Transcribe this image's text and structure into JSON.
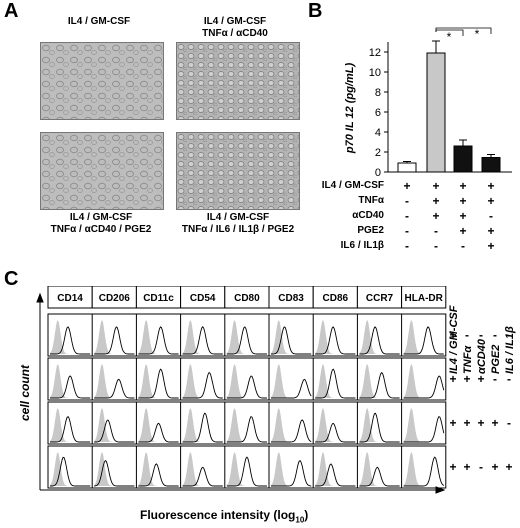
{
  "panel_a": {
    "letter": "A",
    "images": [
      {
        "caption_line1": "IL4 / GM-CSF",
        "caption_line2": ""
      },
      {
        "caption_line1": "IL4 / GM-CSF",
        "caption_line2": "TNFα / αCD40"
      },
      {
        "caption_line1": "IL4 / GM-CSF",
        "caption_line2": "TNFα / αCD40 / PGE2"
      },
      {
        "caption_line1": "IL4 / GM-CSF",
        "caption_line2": "TNFα / IL6 / IL1β / PGE2"
      }
    ]
  },
  "panel_b": {
    "letter": "B",
    "star": "*",
    "row_labels": [
      "IL4 / GM-CSF",
      "TNFα",
      "αCD40",
      "PGE2",
      "IL6 / IL1β"
    ],
    "signs": [
      [
        "+",
        "+",
        "+",
        "+"
      ],
      [
        "-",
        "+",
        "+",
        "+"
      ],
      [
        "-",
        "+",
        "+",
        "-"
      ],
      [
        "-",
        "-",
        "+",
        "+"
      ],
      [
        "-",
        "-",
        "-",
        "+"
      ]
    ]
  },
  "chart_data": {
    "type": "bar",
    "ylabel": "p70 IL 12 (pg/mL)",
    "ylim": [
      0,
      13
    ],
    "yticks": [
      "0",
      "2",
      "4",
      "6",
      "8",
      "10",
      "12"
    ],
    "values": [
      0.9,
      11.9,
      2.6,
      1.45
    ],
    "errors": [
      0.15,
      1.2,
      0.6,
      0.3
    ],
    "bar_colors": [
      "#ffffff",
      "#c8c8c8",
      "#111111",
      "#111111"
    ],
    "significance": "Bar 2 vs bars 3 and 4 marked *"
  },
  "panel_c": {
    "letter": "C",
    "markers": [
      "CD14",
      "CD206",
      "CD11c",
      "CD54",
      "CD80",
      "CD83",
      "CD86",
      "CCR7",
      "HLA-DR"
    ],
    "ylabel": "cell count",
    "xlabel_main": "Fluorescence intensity (log",
    "xlabel_sub": "10",
    "xlabel_close": ")",
    "col_labels": [
      "IL4 / GM-CSF",
      "TNFα",
      "αCD40",
      "PGE2",
      "IL6 / IL1β"
    ],
    "row_signs": [
      [
        "+",
        "-",
        "-",
        "-",
        "-"
      ],
      [
        "+",
        "+",
        "+",
        "-",
        "-"
      ],
      [
        "+",
        "+",
        "+",
        "+",
        "-"
      ],
      [
        "+",
        "+",
        "-",
        "+",
        "+"
      ]
    ]
  }
}
